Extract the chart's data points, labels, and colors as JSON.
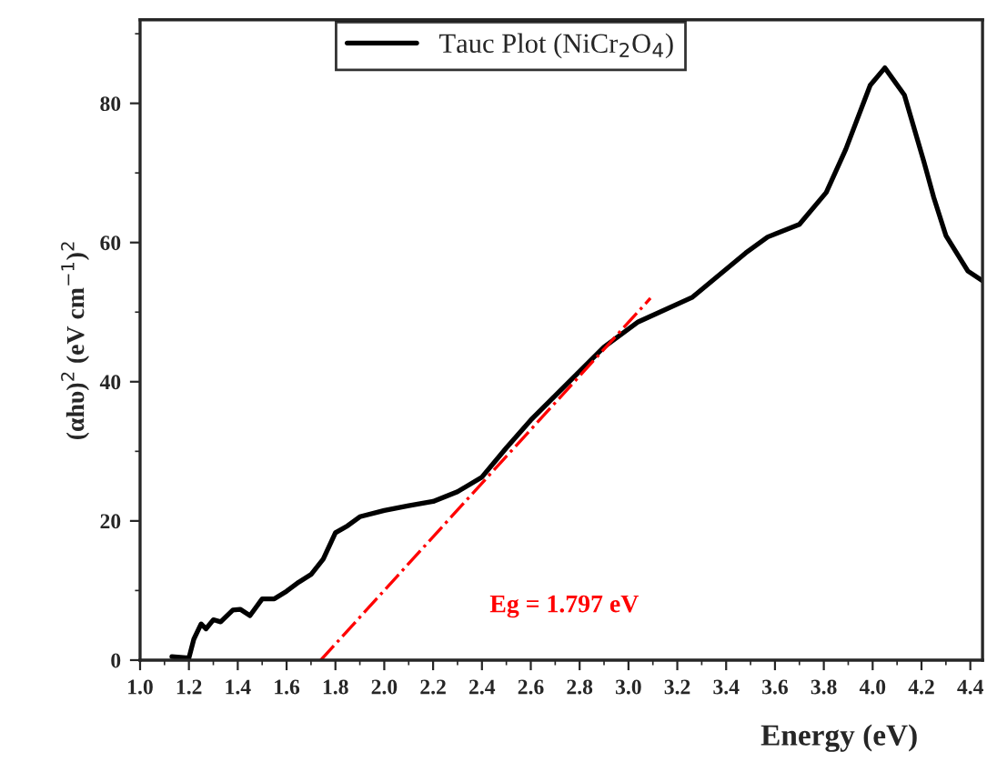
{
  "chart_data": {
    "type": "line",
    "xlabel": "Energy (eV)",
    "ylabel": "(αhυ)$^{2}$ (eV cm$^{−1}$)$^{2}$",
    "xlim": [
      1.0,
      4.45
    ],
    "xticks": [
      {
        "value": 1,
        "label": "1.0"
      },
      1.2,
      1.4,
      1.6,
      1.8,
      {
        "value": 2,
        "label": "2.0"
      },
      2.2,
      2.4,
      2.6,
      2.8,
      {
        "value": 3,
        "label": "3.0"
      },
      3.2,
      3.4,
      3.6,
      3.8,
      {
        "value": 4,
        "label": "4.0"
      },
      4.2,
      4.4
    ],
    "ylim": [
      0,
      92
    ],
    "yticks": [
      0,
      20,
      40,
      60,
      80
    ],
    "grid": false,
    "legend": "top",
    "marker": "none",
    "series": [
      {
        "name": "Tauc Plot (NiCr$_{2}$O$_{4}$)",
        "color": "#000000",
        "line_style": "solid",
        "x": [
          1.13,
          1.2,
          1.22,
          1.25,
          1.27,
          1.3,
          1.33,
          1.38,
          1.41,
          1.45,
          1.5,
          1.55,
          1.6,
          1.65,
          1.7,
          1.75,
          1.8,
          1.85,
          1.9,
          2.0,
          2.1,
          2.2,
          2.3,
          2.4,
          2.5,
          2.6,
          2.7,
          2.8,
          2.9,
          3.04,
          3.26,
          3.48,
          3.57,
          3.7,
          3.81,
          3.89,
          3.99,
          4.05,
          4.13,
          4.21,
          4.25,
          4.3,
          4.39,
          4.45
        ],
        "values": [
          0.5,
          0.3,
          3,
          5.2,
          4.5,
          5.8,
          5.5,
          7.2,
          7.3,
          6.4,
          8.8,
          8.8,
          9.9,
          11.2,
          12.3,
          14.5,
          18.3,
          19.3,
          20.6,
          21.5,
          22.2,
          22.8,
          24.2,
          26.3,
          30.5,
          34.5,
          38,
          41.5,
          45,
          48.6,
          52.1,
          58.5,
          60.8,
          62.6,
          67.2,
          73.4,
          82.6,
          85.1,
          81.2,
          71.6,
          66.5,
          61,
          55.9,
          54.5
        ]
      },
      {
        "type": "line",
        "color": "#ff0000",
        "line_style": "dashdot",
        "x": [
          1.74,
          3.09
        ],
        "values": [
          0,
          52
        ]
      }
    ],
    "annotations": [
      "Eg = 1.797 eV"
    ]
  }
}
